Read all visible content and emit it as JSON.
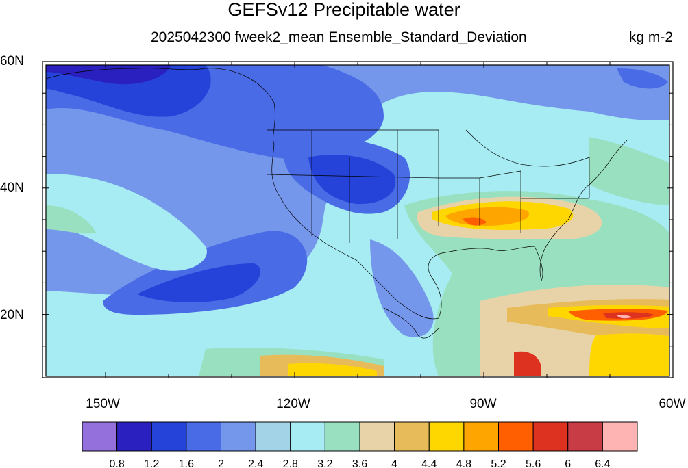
{
  "title": "GEFSv12 Precipitable water",
  "subtitle": "2025042300 fweek2_mean Ensemble_Standard_Deviation",
  "units": "kg m-2",
  "map": {
    "type": "filled-contour map",
    "lat_range": [
      10,
      60
    ],
    "lon_range": [
      -160,
      -60
    ],
    "lat_ticks": [
      {
        "label": "60N",
        "lat": 60
      },
      {
        "label": "40N",
        "lat": 40
      },
      {
        "label": "20N",
        "lat": 20
      }
    ],
    "lon_ticks": [
      {
        "label": "150W",
        "lon": -150
      },
      {
        "label": "120W",
        "lon": -120
      },
      {
        "label": "90W",
        "lon": -90
      },
      {
        "label": "60W",
        "lon": -60
      }
    ]
  },
  "colorbar": {
    "levels": [
      "0.8",
      "1.2",
      "1.6",
      "2",
      "2.4",
      "2.8",
      "3.2",
      "3.6",
      "4",
      "4.4",
      "4.8",
      "5.2",
      "5.6",
      "6",
      "6.4"
    ],
    "colors": [
      "#9370db",
      "#2a1fbf",
      "#2542d9",
      "#4a6be6",
      "#7597eb",
      "#a2d3e6",
      "#a6ecf2",
      "#99e0c0",
      "#e8d3a8",
      "#e8bb5a",
      "#ffd700",
      "#ffa500",
      "#ff5f00",
      "#de3220",
      "#c83c46",
      "#ffb4b4"
    ]
  }
}
